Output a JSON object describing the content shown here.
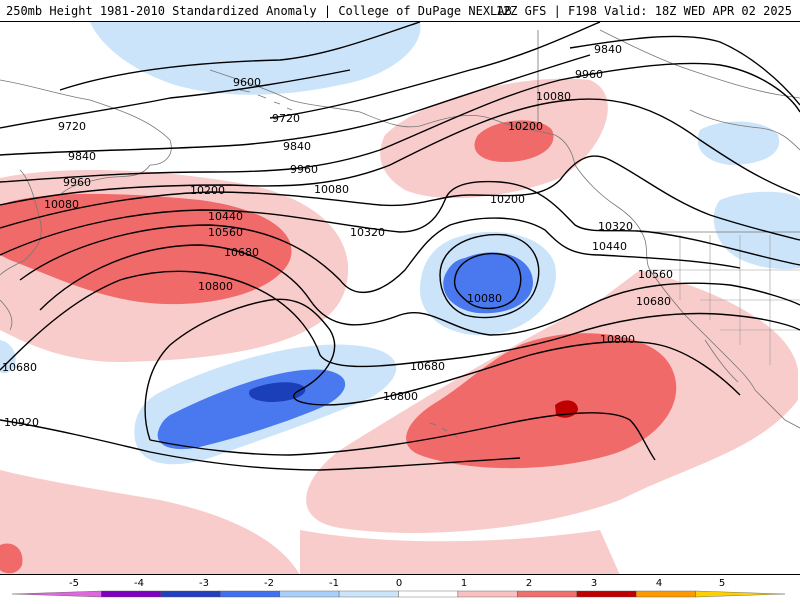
{
  "header": {
    "title_left": "250mb Height 1981-2010 Standardized Anomaly | College of DuPage NEXLAB",
    "title_right": "12Z GFS | F198 Valid: 18Z WED APR 02 2025"
  },
  "contour_labels": [
    "9600",
    "9720",
    "9720",
    "9840",
    "9840",
    "9840",
    "9960",
    "9960",
    "9960",
    "10080",
    "10080",
    "10080",
    "10080",
    "10200",
    "10200",
    "10200",
    "10320",
    "10320",
    "10440",
    "10440",
    "10560",
    "10560",
    "10680",
    "10680",
    "10680",
    "10680",
    "10800",
    "10800",
    "10800",
    "10920"
  ],
  "colorbar": {
    "ticks": [
      "-5",
      "-4",
      "-3",
      "-2",
      "-1",
      "0",
      "1",
      "2",
      "3",
      "4",
      "5"
    ],
    "colors": [
      "#e066e0",
      "#8000c0",
      "#2040c0",
      "#4070f0",
      "#a8d0f8",
      "#cce4fa",
      "#ffffff",
      "#f8c0c0",
      "#f07070",
      "#c00000",
      "#ff9900",
      "#ffd000"
    ]
  },
  "anomaly_colors": {
    "light_blue": "#cce4fa",
    "mid_blue": "#4a78ee",
    "dark_blue": "#1a3fb8",
    "light_red": "#f9cccc",
    "mid_red": "#f06a6a",
    "dark_red": "#c00000"
  }
}
